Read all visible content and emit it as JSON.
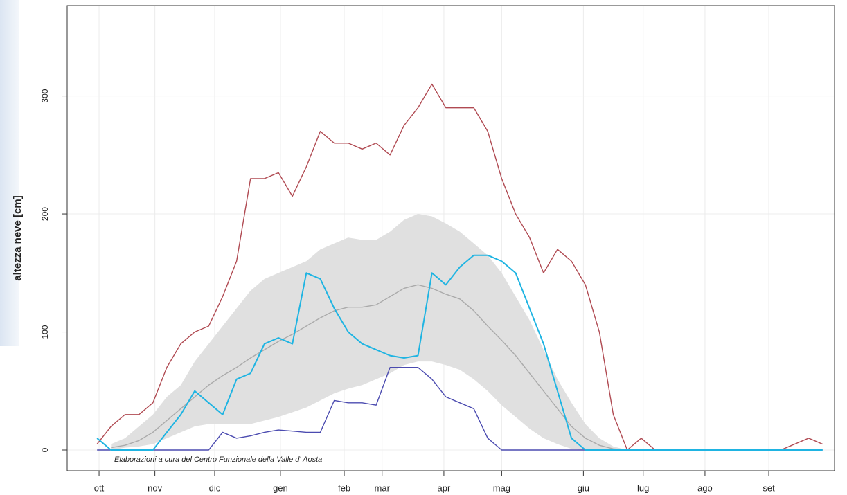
{
  "chart_data": {
    "type": "line",
    "ylabel": "altezza neve [cm]",
    "annotation": "Elaborazioni a cura del Centro Funzionale della Valle d' Aosta",
    "xlim": [
      -15,
      370
    ],
    "ylim": [
      -17.6,
      376.6
    ],
    "yticks": [
      0,
      100,
      200,
      300
    ],
    "xticks": [
      {
        "value": 1,
        "label": "ott"
      },
      {
        "value": 29,
        "label": "nov"
      },
      {
        "value": 59,
        "label": "dic"
      },
      {
        "value": 92,
        "label": "gen"
      },
      {
        "value": 124,
        "label": "feb"
      },
      {
        "value": 143,
        "label": "mar"
      },
      {
        "value": 174,
        "label": "apr"
      },
      {
        "value": 203,
        "label": "mag"
      },
      {
        "value": 244,
        "label": "giu"
      },
      {
        "value": 274,
        "label": "lug"
      },
      {
        "value": 305,
        "label": "ago"
      },
      {
        "value": 337,
        "label": "set"
      }
    ],
    "grid": true,
    "x": [
      0,
      7,
      14,
      21,
      28,
      35,
      42,
      49,
      56,
      63,
      70,
      77,
      84,
      91,
      98,
      105,
      112,
      119,
      126,
      133,
      140,
      147,
      154,
      161,
      168,
      175,
      182,
      189,
      196,
      203,
      210,
      217,
      224,
      231,
      238,
      245,
      252,
      259,
      266,
      273,
      280,
      287,
      294,
      301,
      308,
      315,
      322,
      329,
      336,
      343,
      350,
      357,
      364
    ],
    "band": {
      "color": "#e0e0e0",
      "low": [
        null,
        0,
        2,
        3,
        5,
        10,
        15,
        20,
        22,
        22,
        22,
        22,
        25,
        28,
        32,
        36,
        42,
        48,
        52,
        55,
        60,
        65,
        72,
        75,
        75,
        72,
        68,
        60,
        50,
        38,
        28,
        18,
        10,
        5,
        1,
        0,
        0,
        0,
        0,
        null,
        null,
        null,
        null,
        null,
        null,
        null,
        null,
        null,
        null,
        null,
        null,
        null,
        null
      ],
      "high": [
        null,
        5,
        10,
        20,
        30,
        45,
        55,
        75,
        90,
        105,
        120,
        135,
        145,
        150,
        155,
        160,
        170,
        175,
        180,
        178,
        178,
        185,
        195,
        200,
        198,
        192,
        185,
        175,
        165,
        150,
        130,
        110,
        85,
        60,
        40,
        22,
        10,
        3,
        0,
        null,
        null,
        null,
        null,
        null,
        null,
        null,
        null,
        null,
        null,
        null,
        null,
        null,
        null
      ]
    },
    "series": [
      {
        "color": "#aaaaaa",
        "values": [
          null,
          2,
          4,
          8,
          15,
          25,
          35,
          45,
          55,
          63,
          70,
          78,
          85,
          92,
          98,
          105,
          112,
          118,
          121,
          121,
          123,
          130,
          137,
          140,
          137,
          132,
          128,
          118,
          105,
          93,
          80,
          65,
          50,
          35,
          20,
          10,
          4,
          1,
          0,
          null,
          null,
          null,
          null,
          null,
          null,
          null,
          null,
          null,
          null,
          null,
          null,
          null,
          null
        ]
      },
      {
        "color": "#b04a52",
        "values": [
          5,
          20,
          30,
          30,
          40,
          70,
          90,
          100,
          105,
          130,
          160,
          230,
          230,
          235,
          215,
          240,
          270,
          260,
          260,
          255,
          260,
          250,
          275,
          290,
          310,
          290,
          290,
          290,
          270,
          230,
          200,
          180,
          150,
          170,
          160,
          140,
          100,
          30,
          0,
          10,
          0,
          0,
          0,
          0,
          0,
          0,
          0,
          0,
          0,
          0,
          5,
          10,
          5
        ]
      },
      {
        "color": "#4b4bb0",
        "values": [
          0,
          0,
          0,
          0,
          0,
          0,
          0,
          0,
          0,
          15,
          10,
          12,
          15,
          17,
          16,
          15,
          15,
          42,
          40,
          40,
          38,
          70,
          70,
          70,
          60,
          45,
          40,
          35,
          10,
          0,
          0,
          0,
          0,
          0,
          0,
          0,
          0,
          0,
          0,
          0,
          0,
          0,
          0,
          0,
          0,
          0,
          0,
          0,
          0,
          0,
          0,
          0,
          0
        ]
      },
      {
        "color": "#1fb4e2",
        "values": [
          10,
          0,
          0,
          0,
          0,
          15,
          30,
          50,
          40,
          30,
          60,
          65,
          90,
          95,
          90,
          150,
          145,
          120,
          100,
          90,
          85,
          80,
          78,
          80,
          150,
          140,
          155,
          165,
          165,
          160,
          150,
          120,
          90,
          50,
          10,
          0,
          0,
          0,
          0,
          0,
          0,
          0,
          0,
          0,
          0,
          0,
          0,
          0,
          0,
          0,
          0,
          0,
          0
        ]
      }
    ]
  }
}
